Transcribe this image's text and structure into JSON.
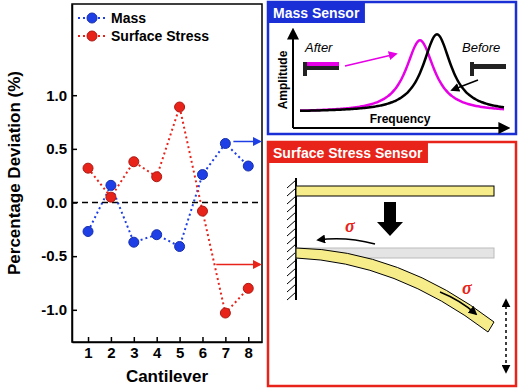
{
  "chart_data": {
    "type": "line",
    "x_label": "Cantilever",
    "y_label": "Percentage Deviation (%)",
    "x": [
      1,
      2,
      3,
      4,
      5,
      6,
      7,
      8
    ],
    "series": [
      {
        "name": "Mass",
        "color": "#1f3fe6",
        "marker": "circle",
        "line_style": "dotted",
        "values": [
          -0.27,
          0.16,
          -0.37,
          -0.3,
          -0.41,
          0.26,
          0.55,
          0.34
        ]
      },
      {
        "name": "Surface Stress",
        "color": "#e8231a",
        "marker": "circle",
        "line_style": "dotted",
        "values": [
          0.32,
          0.05,
          0.38,
          0.24,
          0.89,
          -0.08,
          -1.03,
          -0.8
        ]
      }
    ],
    "xlim": [
      0.3,
      8.6
    ],
    "xticks": [
      1,
      2,
      3,
      4,
      5,
      6,
      7,
      8
    ],
    "ylim": [
      -1.3,
      1.85
    ],
    "yticks": [
      {
        "value": -1,
        "label": "-1.0"
      },
      -0.5,
      {
        "value": 0,
        "label": "0.0"
      },
      0.5,
      {
        "value": 1,
        "label": "1.0"
      }
    ],
    "reference_line": 0,
    "legend": "upper left"
  },
  "diagram": {
    "mass_sensor": {
      "title": "Mass Sensor",
      "after": "After",
      "before": "Before",
      "y_label": "Amplitude",
      "x_label": "Frequency"
    },
    "surface_stress_sensor": {
      "title": "Surface Stress Sensor",
      "stress_labels": [
        "σ",
        "σ"
      ]
    }
  }
}
